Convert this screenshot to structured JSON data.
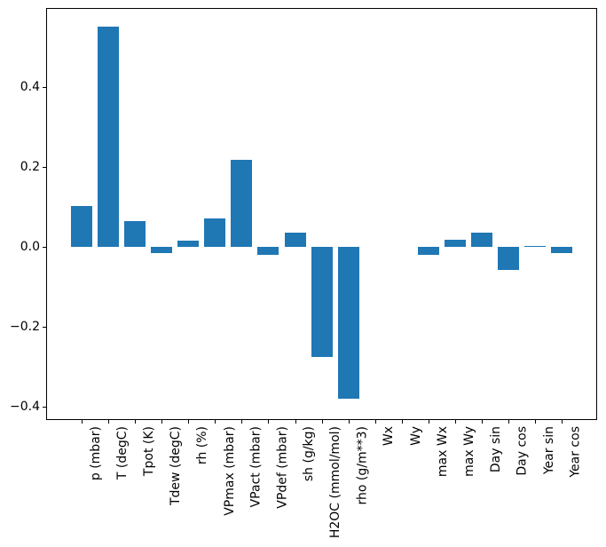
{
  "chart_data": {
    "type": "bar",
    "title": "",
    "xlabel": "",
    "ylabel": "",
    "categories": [
      "p (mbar)",
      "T (degC)",
      "Tpot (K)",
      "Tdew (degC)",
      "rh (%)",
      "VPmax (mbar)",
      "VPact (mbar)",
      "VPdef (mbar)",
      "sh (g/kg)",
      "H2OC (mmol/mol)",
      "rho (g/m**3)",
      "Wx",
      "Wy",
      "max Wx",
      "max Wy",
      "Day sin",
      "Day cos",
      "Year sin",
      "Year cos"
    ],
    "values": [
      0.102,
      0.55,
      0.064,
      -0.016,
      0.015,
      0.07,
      0.218,
      -0.02,
      0.035,
      -0.275,
      -0.38,
      0.0,
      0.0,
      -0.021,
      0.017,
      0.036,
      -0.058,
      0.003,
      -0.016
    ],
    "ylim": [
      -0.433,
      0.597
    ],
    "yticks": [
      -0.4,
      -0.2,
      0.0,
      0.2,
      0.4
    ],
    "ytick_labels": [
      "−0.4",
      "−0.2",
      "0.0",
      "0.2",
      "0.4"
    ],
    "bar_color": "#1f77b4",
    "axis_color": "#000000",
    "background_color": "#ffffff",
    "grid": false,
    "legend": null,
    "bar_width_fraction": 0.8,
    "x_label_rotation_deg": 90
  }
}
